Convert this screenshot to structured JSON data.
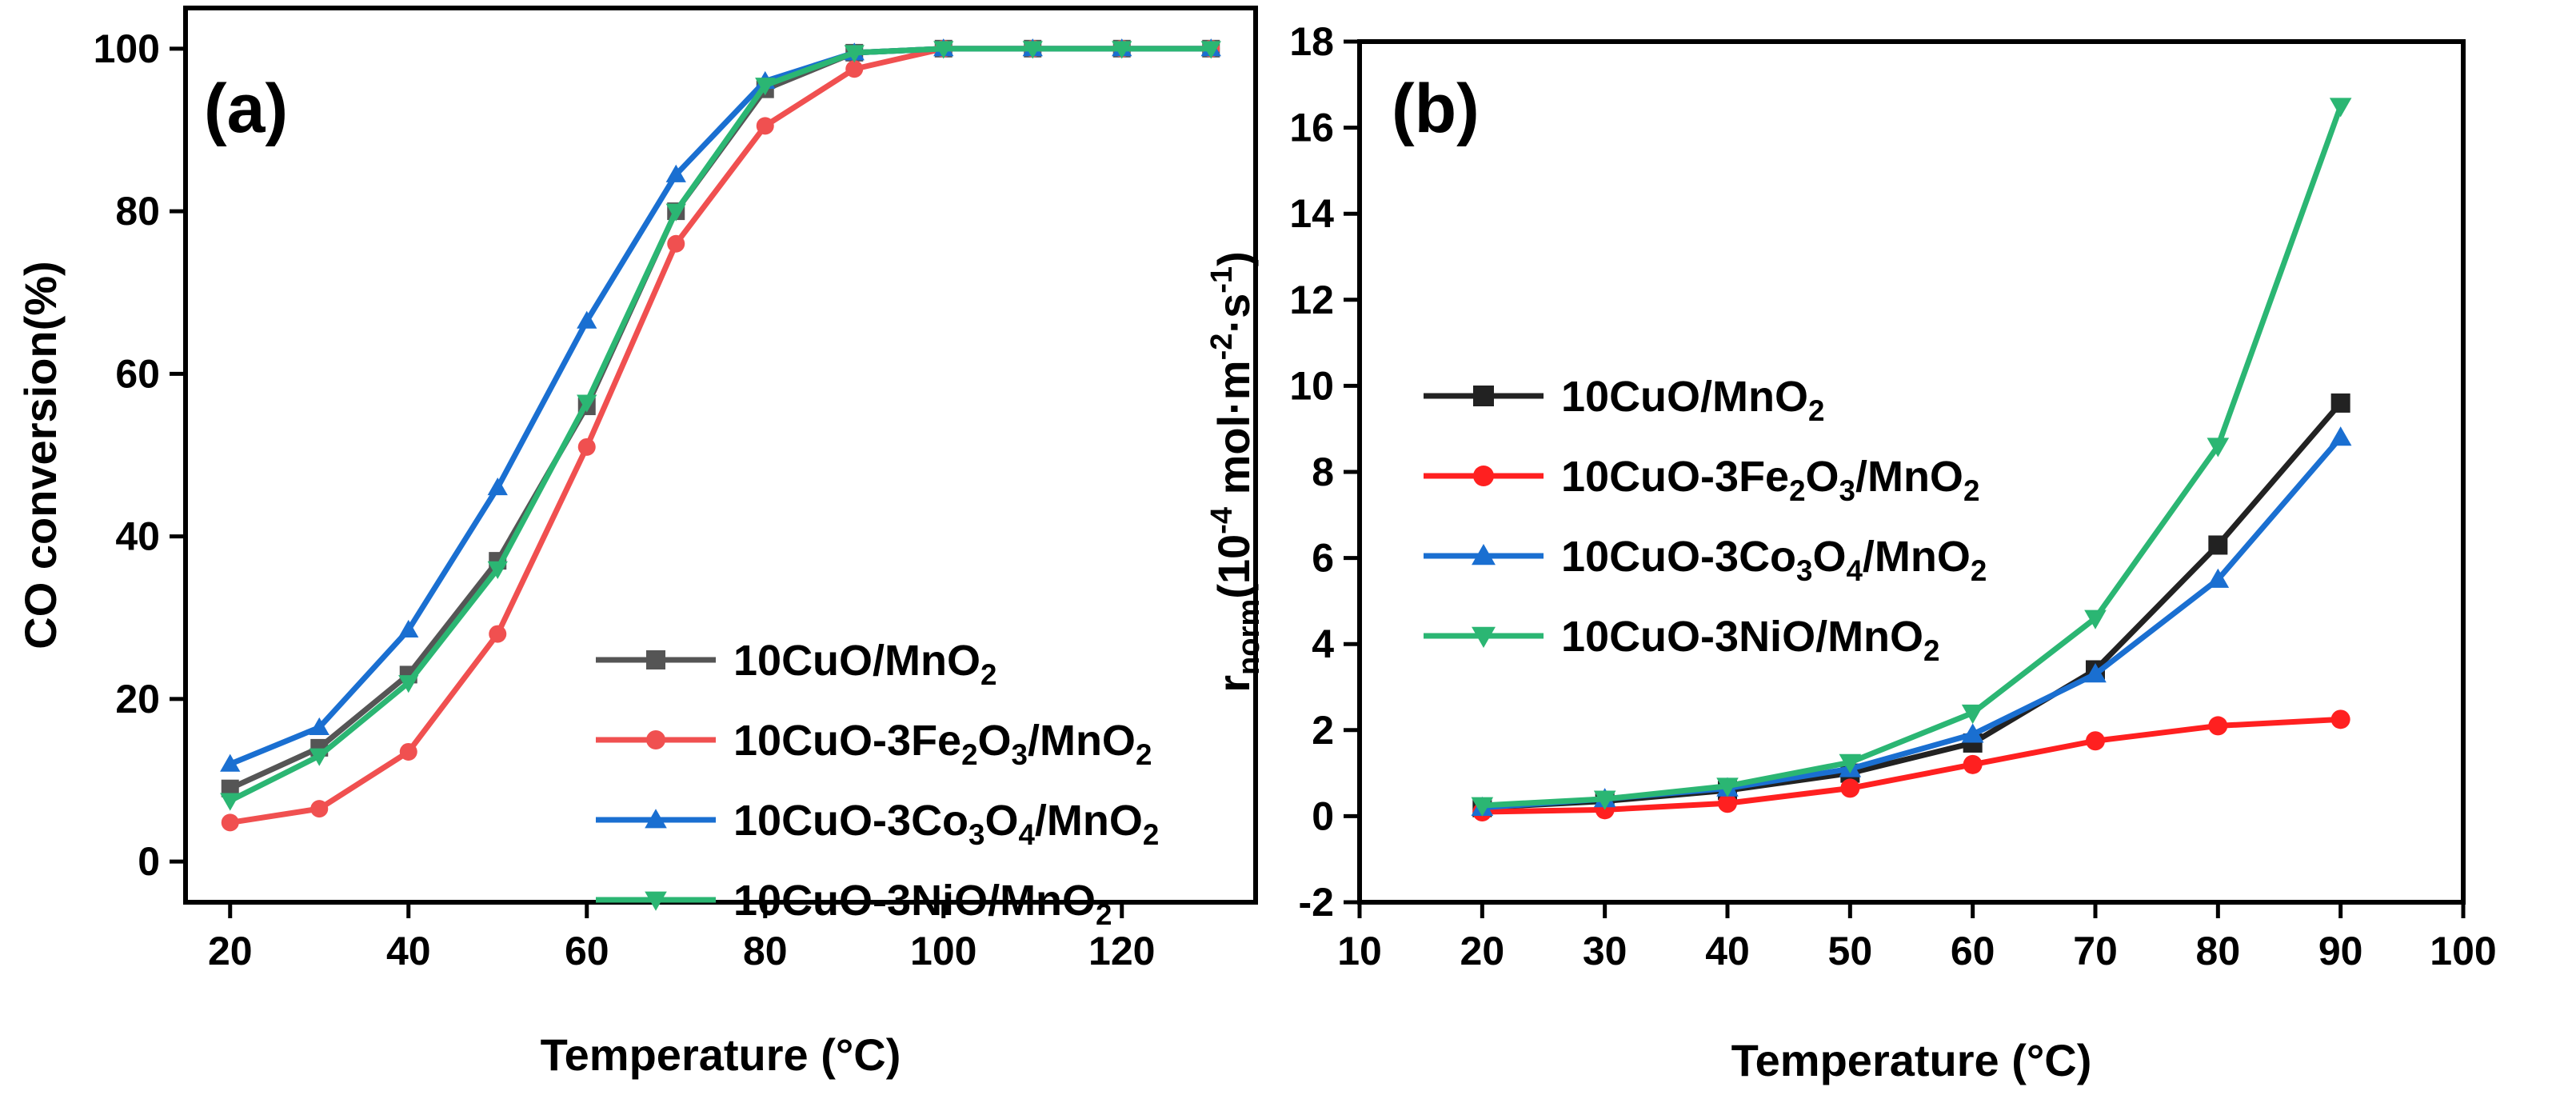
{
  "chart_data": [
    {
      "type": "line",
      "panel_label": "(a)",
      "title": "",
      "xlabel": "Temperature (°C)",
      "ylabel": "CO conversion(%)",
      "xlim": [
        15,
        135
      ],
      "ylim": [
        -5,
        105
      ],
      "xticks": [
        20,
        40,
        60,
        80,
        100,
        120
      ],
      "yticks": [
        0,
        20,
        40,
        60,
        80,
        100
      ],
      "legend": "bottom-right",
      "series": [
        {
          "legend_parts": [
            [
              "10CuO/MnO",
              ""
            ],
            [
              "2",
              "sub"
            ]
          ],
          "color": "#555555",
          "marker": "square",
          "x": [
            20,
            30,
            40,
            50,
            60,
            70,
            80,
            90,
            100,
            110,
            120,
            130
          ],
          "values": [
            9,
            14,
            23,
            37,
            56,
            80,
            95,
            99.5,
            100,
            100,
            100,
            100
          ]
        },
        {
          "legend_parts": [
            [
              "10CuO-3Fe",
              ""
            ],
            [
              "2",
              "sub"
            ],
            [
              "O",
              ""
            ],
            [
              "3",
              "sub"
            ],
            [
              "/MnO",
              ""
            ],
            [
              "2",
              "sub"
            ]
          ],
          "color": "#f05050",
          "marker": "circle",
          "x": [
            20,
            30,
            40,
            50,
            60,
            70,
            80,
            90,
            100,
            110,
            120,
            130
          ],
          "values": [
            4.8,
            6.5,
            13.5,
            28,
            51,
            76,
            90.5,
            97.5,
            100,
            100,
            100,
            100
          ]
        },
        {
          "legend_parts": [
            [
              "10CuO-3Co",
              ""
            ],
            [
              "3",
              "sub"
            ],
            [
              "O",
              ""
            ],
            [
              "4",
              "sub"
            ],
            [
              "/MnO",
              ""
            ],
            [
              "2",
              "sub"
            ]
          ],
          "color": "#1a6fd1",
          "marker": "triangle-up",
          "x": [
            20,
            30,
            40,
            50,
            60,
            70,
            80,
            90,
            100,
            110,
            120,
            130
          ],
          "values": [
            12,
            16.5,
            28.5,
            46,
            66.5,
            84.5,
            96,
            99.5,
            100,
            100,
            100,
            100
          ]
        },
        {
          "legend_parts": [
            [
              "10CuO-3NiO/MnO",
              ""
            ],
            [
              "2",
              "sub"
            ]
          ],
          "color": "#2bb673",
          "marker": "triangle-down",
          "x": [
            20,
            30,
            40,
            50,
            60,
            70,
            80,
            90,
            100,
            110,
            120,
            130
          ],
          "values": [
            7.5,
            13,
            22,
            36,
            56.5,
            80,
            95.5,
            99.5,
            100,
            100,
            100,
            100
          ]
        }
      ]
    },
    {
      "type": "line",
      "panel_label": "(b)",
      "title": "",
      "xlabel": "Temperature (°C)",
      "ylabel_parts": [
        [
          "r",
          ""
        ],
        [
          "norm",
          "sub"
        ],
        [
          "(10",
          ""
        ],
        [
          "-4",
          "sup"
        ],
        [
          " mol·m",
          ""
        ],
        [
          "-2",
          "sup"
        ],
        [
          "·s",
          ""
        ],
        [
          "-1",
          "sup"
        ],
        [
          ")",
          ""
        ]
      ],
      "xlim": [
        10,
        100
      ],
      "ylim": [
        -2,
        18
      ],
      "xticks": [
        10,
        20,
        30,
        40,
        50,
        60,
        70,
        80,
        90,
        100
      ],
      "yticks": [
        -2,
        0,
        2,
        4,
        6,
        8,
        10,
        12,
        14,
        16,
        18
      ],
      "legend": "center-left",
      "series": [
        {
          "legend_parts": [
            [
              "10CuO/MnO",
              ""
            ],
            [
              "2",
              "sub"
            ]
          ],
          "color": "#222222",
          "marker": "square",
          "x": [
            20,
            30,
            40,
            50,
            60,
            70,
            80,
            90
          ],
          "values": [
            0.2,
            0.35,
            0.6,
            1.0,
            1.7,
            3.4,
            6.3,
            9.6
          ]
        },
        {
          "legend_parts": [
            [
              "10CuO-3Fe",
              ""
            ],
            [
              "2",
              "sub"
            ],
            [
              "O",
              ""
            ],
            [
              "3",
              "sub"
            ],
            [
              "/MnO",
              ""
            ],
            [
              "2",
              "sub"
            ]
          ],
          "color": "#ff2020",
          "marker": "circle",
          "x": [
            20,
            30,
            40,
            50,
            60,
            70,
            80,
            90
          ],
          "values": [
            0.1,
            0.15,
            0.3,
            0.65,
            1.2,
            1.75,
            2.1,
            2.25
          ]
        },
        {
          "legend_parts": [
            [
              "10CuO-3Co",
              ""
            ],
            [
              "3",
              "sub"
            ],
            [
              "O",
              ""
            ],
            [
              "4",
              "sub"
            ],
            [
              "/MnO",
              ""
            ],
            [
              "2",
              "sub"
            ]
          ],
          "color": "#1a6fd1",
          "marker": "triangle-up",
          "x": [
            20,
            30,
            40,
            50,
            60,
            70,
            80,
            90
          ],
          "values": [
            0.2,
            0.4,
            0.65,
            1.1,
            1.9,
            3.3,
            5.5,
            8.8
          ]
        },
        {
          "legend_parts": [
            [
              "10CuO-3NiO/MnO",
              ""
            ],
            [
              "2",
              "sub"
            ]
          ],
          "color": "#2bb673",
          "marker": "triangle-down",
          "x": [
            20,
            30,
            40,
            50,
            60,
            70,
            80,
            90
          ],
          "values": [
            0.25,
            0.4,
            0.7,
            1.25,
            2.4,
            4.6,
            8.6,
            16.5
          ]
        }
      ]
    }
  ]
}
